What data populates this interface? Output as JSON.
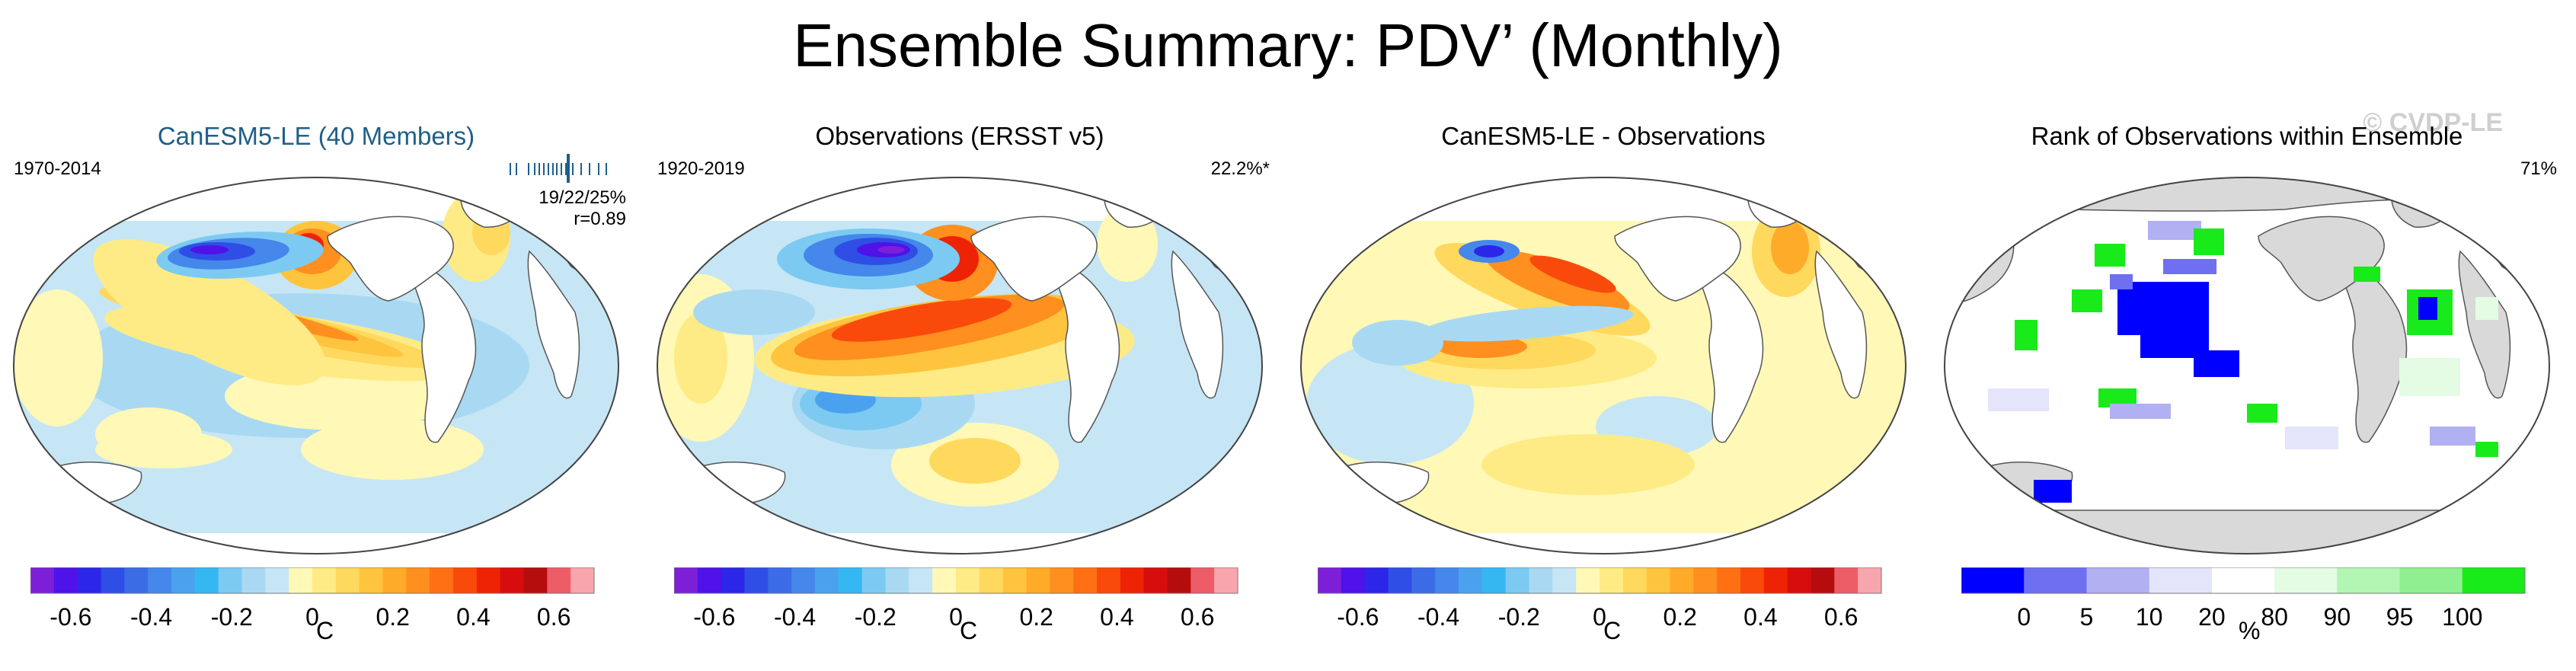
{
  "title": "Ensemble Summary: PDV’ (Monthly)",
  "watermark": "© CVDP-LE",
  "colors": {
    "model_title": "#1f5f88",
    "land_fill": "#d9d9d9"
  },
  "panels": [
    {
      "title": "CanESM5-LE (40 Members)",
      "left_label": "1970-2014",
      "right_label": "19/22/25%",
      "right_label2": "r=0.89",
      "map_type": "model"
    },
    {
      "title": "Observations (ERSST v5)",
      "left_label": "1920-2019",
      "right_label": "22.2%*",
      "map_type": "obs"
    },
    {
      "title": "CanESM5-LE - Observations",
      "left_label": "",
      "right_label": "",
      "map_type": "diff"
    },
    {
      "title": "Rank of Observations within Ensemble",
      "left_label": "",
      "right_label": "71%",
      "map_type": "rank"
    }
  ],
  "colorbar_anomaly": {
    "unit": "C",
    "ticks": [
      "-0.6",
      "-0.4",
      "-0.2",
      "0",
      "0.2",
      "0.4",
      "0.6"
    ],
    "tick_values": [
      -0.6,
      -0.4,
      -0.2,
      0,
      0.2,
      0.4,
      0.6
    ],
    "range": [
      -0.7,
      0.7
    ],
    "colors": [
      "#7e1fd8",
      "#4f12e8",
      "#2b26e8",
      "#2f4ee6",
      "#3b6ce6",
      "#4587ea",
      "#4aa2ef",
      "#35b7f2",
      "#7ccaf2",
      "#a9d9f2",
      "#c6e6f5",
      "#fff8b6",
      "#ffeb85",
      "#ffd85e",
      "#ffc43e",
      "#ffab2a",
      "#ff8f1f",
      "#ff6f13",
      "#f94a0b",
      "#ee2306",
      "#d70d0d",
      "#b50d0d",
      "#ec5d68",
      "#f7a6ad"
    ]
  },
  "colorbar_rank": {
    "unit": "%",
    "ticks": [
      "0",
      "5",
      "10",
      "20",
      "80",
      "90",
      "95",
      "100"
    ],
    "colors": [
      "#0000ff",
      "#6f6ff2",
      "#b0b0f2",
      "#e4e4fa",
      "#ffffff",
      "#e4fbe4",
      "#b3f5b3",
      "#8ef08e",
      "#19ea19"
    ]
  },
  "chart_data": {
    "type": "heatmap",
    "title": "Ensemble Summary: PDV’ (Monthly)",
    "panels": [
      {
        "title": "CanESM5-LE (40 Members)",
        "period": "1970-2014",
        "stats": "19/22/25%",
        "pattern_correlation": 0.89,
        "unit": "C",
        "ticks": [
          -0.6,
          -0.4,
          -0.2,
          0,
          0.2,
          0.4,
          0.6
        ]
      },
      {
        "title": "Observations (ERSST v5)",
        "period": "1920-2019",
        "stats": "22.2%*",
        "unit": "C",
        "ticks": [
          -0.6,
          -0.4,
          -0.2,
          0,
          0.2,
          0.4,
          0.6
        ]
      },
      {
        "title": "CanESM5-LE - Observations",
        "unit": "C",
        "ticks": [
          -0.6,
          -0.4,
          -0.2,
          0,
          0.2,
          0.4,
          0.6
        ]
      },
      {
        "title": "Rank of Observations within Ensemble",
        "stats": "71%",
        "unit": "%",
        "ticks": [
          0,
          5,
          10,
          20,
          80,
          90,
          95,
          100
        ]
      }
    ]
  }
}
